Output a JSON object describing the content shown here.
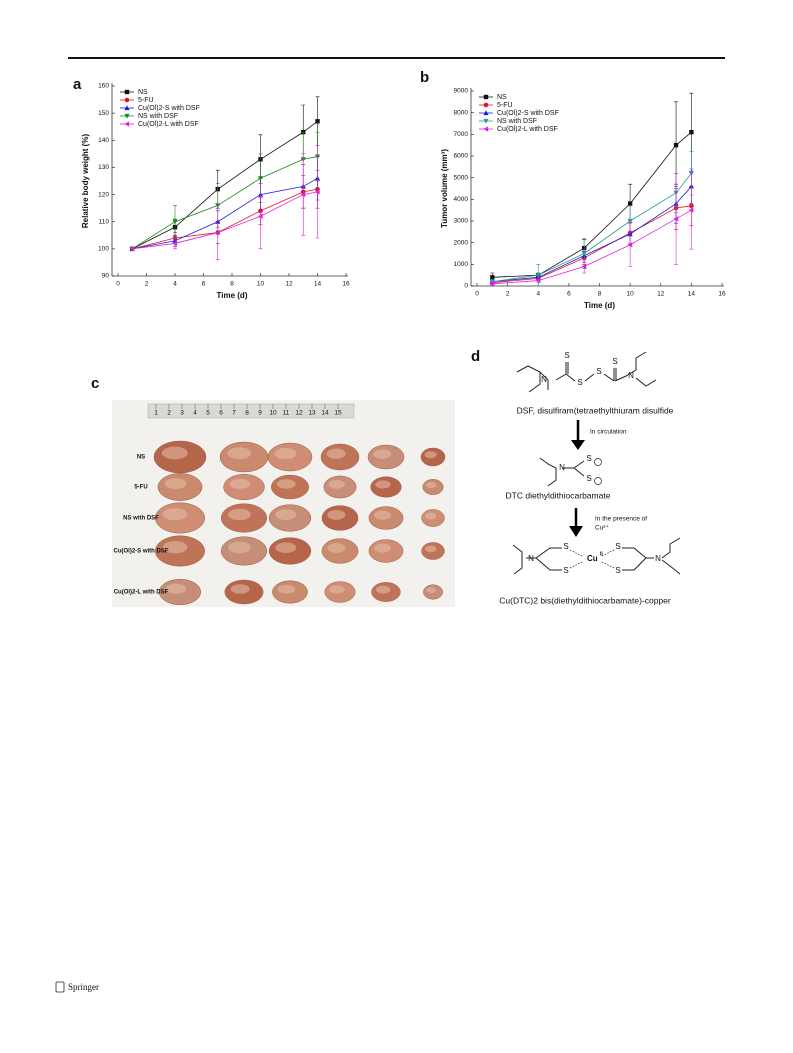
{
  "panel_labels": [
    "a",
    "b",
    "c",
    "d"
  ],
  "chart_data": [
    {
      "type": "line",
      "xlabel": "Time (d)",
      "ylabel": "Relative body weight (%)",
      "xlim": [
        0,
        16
      ],
      "xticks": [
        0,
        2,
        4,
        6,
        8,
        10,
        12,
        14,
        16
      ],
      "ylim": [
        90,
        160
      ],
      "yticks": [
        90,
        100,
        110,
        120,
        130,
        140,
        150,
        160
      ],
      "legend": "upper left",
      "x": [
        1,
        4,
        7,
        10,
        13,
        14
      ],
      "series": [
        {
          "name": "NS",
          "color": "#111111",
          "marker": "square",
          "values": [
            100,
            108,
            122,
            133,
            143,
            147
          ],
          "errors": [
            0,
            3,
            7,
            9,
            10,
            9
          ]
        },
        {
          "name": "5-FU",
          "color": "#e8141c",
          "marker": "circle",
          "values": [
            100,
            104,
            106,
            114,
            121,
            122
          ],
          "errors": [
            0,
            2,
            4,
            5,
            6,
            7
          ]
        },
        {
          "name": "Cu(Ol)2-S with DSF",
          "color": "#1a1ae6",
          "marker": "triangle-up",
          "values": [
            100,
            103,
            110,
            120,
            123,
            126
          ],
          "errors": [
            0,
            2,
            4,
            6,
            8,
            8
          ]
        },
        {
          "name": "NS with DSF",
          "color": "#1a8a1a",
          "marker": "triangle-down",
          "values": [
            100,
            110,
            116,
            126,
            133,
            134
          ],
          "errors": [
            0,
            6,
            8,
            9,
            10,
            9
          ]
        },
        {
          "name": "Cu(Ol)2-L with DSF",
          "color": "#e020e0",
          "marker": "triangle-left",
          "values": [
            100,
            102,
            106,
            112,
            120,
            121
          ],
          "errors": [
            0,
            2,
            10,
            12,
            15,
            17
          ]
        }
      ]
    },
    {
      "type": "line",
      "xlabel": "Time (d)",
      "ylabel": "Tumor volume (mm³)",
      "xlim": [
        0,
        16
      ],
      "xticks": [
        0,
        2,
        4,
        6,
        8,
        10,
        12,
        14,
        16
      ],
      "ylim": [
        0,
        9000
      ],
      "yticks": [
        0,
        1000,
        2000,
        3000,
        4000,
        5000,
        6000,
        7000,
        8000,
        9000
      ],
      "legend": "upper left",
      "x": [
        1,
        4,
        7,
        10,
        13,
        14
      ],
      "series": [
        {
          "name": "NS",
          "color": "#111111",
          "marker": "square",
          "values": [
            400,
            500,
            1750,
            3800,
            6500,
            7100
          ],
          "errors": [
            200,
            100,
            400,
            900,
            2000,
            1800
          ]
        },
        {
          "name": "5-FU",
          "color": "#e8141c",
          "marker": "circle",
          "values": [
            150,
            350,
            1300,
            2450,
            3600,
            3700
          ],
          "errors": [
            100,
            100,
            300,
            500,
            1000,
            900
          ]
        },
        {
          "name": "Cu(Ol)2-S with DSF",
          "color": "#1a1ae6",
          "marker": "triangle-up",
          "values": [
            200,
            400,
            1400,
            2400,
            3800,
            4600
          ],
          "errors": [
            100,
            100,
            300,
            500,
            900,
            800
          ]
        },
        {
          "name": "NS with DSF",
          "color": "#2a9a9a",
          "marker": "triangle-down",
          "values": [
            200,
            500,
            1500,
            3000,
            4300,
            5200
          ],
          "errors": [
            100,
            500,
            700,
            700,
            900,
            1000
          ]
        },
        {
          "name": "Cu(Ol)2-L with DSF",
          "color": "#e020e0",
          "marker": "triangle-left",
          "values": [
            100,
            250,
            900,
            1900,
            3100,
            3500
          ],
          "errors": [
            80,
            80,
            300,
            1000,
            2100,
            1800
          ]
        }
      ]
    }
  ],
  "photo": {
    "ruler_labels": [
      "1",
      "2",
      "3",
      "4",
      "5",
      "6",
      "7",
      "8",
      "9",
      "10",
      "11",
      "12",
      "13",
      "14",
      "15"
    ],
    "row_labels": [
      "NS",
      "5-FU",
      "NS with DSF",
      "Cu(Ol)2-S with DSF",
      "Cu(Ol)2-L with DSF"
    ]
  },
  "scheme": {
    "atoms": {
      "S": "S",
      "N": "N",
      "Cu": "Cu",
      "Cu_ox": "II"
    },
    "dsf_caption": "DSF, disulfiram(tetraethylthiuram disulfide",
    "step1": "In circulation",
    "dtc_caption": "DTC diethyldithiocarbamate",
    "step2": "In the presence of",
    "step2_ion": "Cu²⁺",
    "complex_caption": "Cu(DTC)2 bis(diethyldithiocarbamate)-copper"
  },
  "footer": {
    "publisher": "Springer"
  }
}
